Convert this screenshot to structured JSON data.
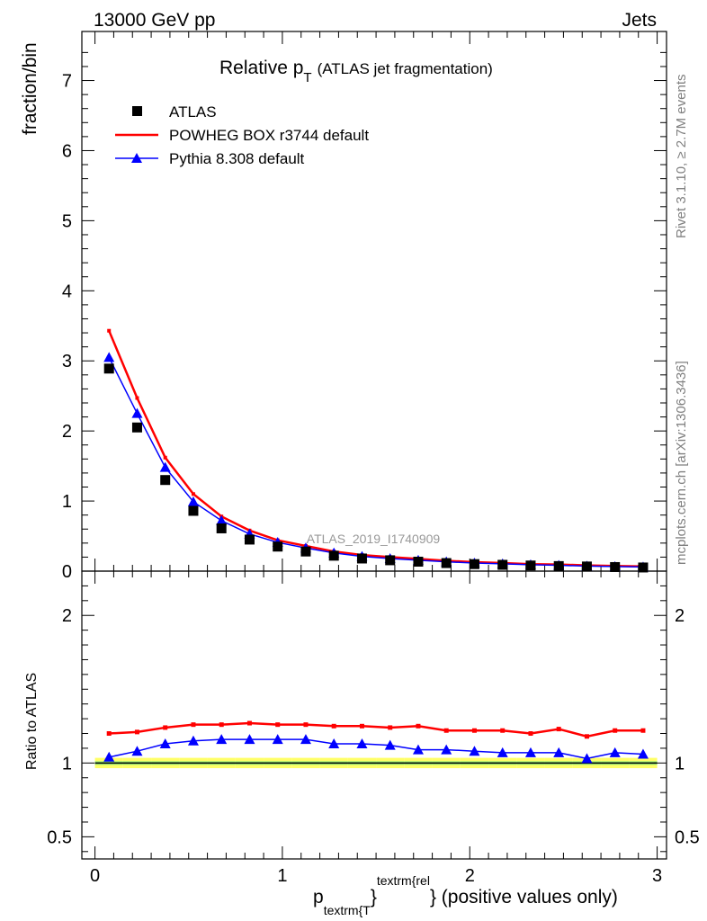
{
  "header": {
    "left": "13000 GeV pp",
    "right": "Jets"
  },
  "side_labels": {
    "rivet": "Rivet 3.1.10, ≥ 2.7M events",
    "mcplots": "mcplots.cern.ch [arXiv:1306.3436]"
  },
  "chart_data": [
    {
      "type": "scatter",
      "title": {
        "main": "Relative p",
        "sub": "T",
        "paren": "(ATLAS jet fragmentation)"
      },
      "watermark": "ATLAS_2019_I1740909",
      "xlabel": {
        "p": "p",
        "sub": "textrm{T",
        "brace": "}",
        "sup": "textrm{rel",
        "rest": "} (positive values only)"
      },
      "ylabel": "fraction/bin",
      "xlim": [
        -0.07,
        3.05
      ],
      "ylim": [
        0,
        7.7
      ],
      "x_ticks": [
        0,
        1,
        2,
        3
      ],
      "y_ticks": [
        0,
        1,
        2,
        3,
        4,
        5,
        6,
        7
      ],
      "x": [
        0.075,
        0.225,
        0.375,
        0.525,
        0.675,
        0.825,
        0.975,
        1.125,
        1.275,
        1.425,
        1.575,
        1.725,
        1.875,
        2.025,
        2.175,
        2.325,
        2.475,
        2.625,
        2.775,
        2.925
      ],
      "legend_position": "top-left",
      "series": [
        {
          "name": "ATLAS",
          "marker": "square",
          "color": "#000000",
          "values": [
            2.89,
            2.05,
            1.3,
            0.86,
            0.61,
            0.45,
            0.35,
            0.28,
            0.22,
            0.18,
            0.155,
            0.135,
            0.115,
            0.1,
            0.09,
            0.08,
            0.072,
            0.066,
            0.058,
            0.052
          ]
        },
        {
          "name": "POWHEG BOX r3744 default",
          "marker": "line",
          "color": "#ff0000",
          "values": [
            3.43,
            2.47,
            1.62,
            1.1,
            0.78,
            0.58,
            0.44,
            0.36,
            0.28,
            0.23,
            0.2,
            0.175,
            0.148,
            0.128,
            0.116,
            0.1,
            0.095,
            0.082,
            0.074,
            0.067
          ]
        },
        {
          "name": "Pythia 8.308 default",
          "marker": "triangle",
          "color": "#0000ff",
          "values": [
            3.05,
            2.25,
            1.48,
            0.99,
            0.72,
            0.53,
            0.41,
            0.33,
            0.26,
            0.21,
            0.18,
            0.155,
            0.133,
            0.115,
            0.104,
            0.091,
            0.083,
            0.072,
            0.066,
            0.059
          ]
        }
      ]
    },
    {
      "type": "scatter",
      "ylabel": "Ratio to ATLAS",
      "ylim": [
        0.35,
        2.3
      ],
      "y_ticks": [
        0.5,
        1,
        2
      ],
      "x_ticks": [
        0,
        1,
        2,
        3
      ],
      "x": [
        0.075,
        0.225,
        0.375,
        0.525,
        0.675,
        0.825,
        0.975,
        1.125,
        1.275,
        1.425,
        1.575,
        1.725,
        1.875,
        2.025,
        2.175,
        2.325,
        2.475,
        2.625,
        2.775,
        2.925
      ],
      "band": {
        "outer_color": "#ffff66",
        "inner_color": "#99ee77",
        "outer": [
          0.035,
          0.035,
          0.035,
          0.035,
          0.035,
          0.035,
          0.035,
          0.035,
          0.035,
          0.035,
          0.035,
          0.035,
          0.035,
          0.035,
          0.035,
          0.035,
          0.035,
          0.035,
          0.035,
          0.035
        ],
        "inner": [
          0.012,
          0.012,
          0.012,
          0.012,
          0.012,
          0.012,
          0.012,
          0.012,
          0.012,
          0.012,
          0.012,
          0.012,
          0.012,
          0.012,
          0.012,
          0.012,
          0.012,
          0.012,
          0.012,
          0.012
        ]
      },
      "series": [
        {
          "name": "POWHEG BOX r3744 default",
          "color": "#ff0000",
          "values": [
            1.2,
            1.21,
            1.24,
            1.26,
            1.26,
            1.27,
            1.26,
            1.26,
            1.25,
            1.25,
            1.24,
            1.25,
            1.22,
            1.22,
            1.22,
            1.2,
            1.23,
            1.18,
            1.22,
            1.22
          ]
        },
        {
          "name": "Pythia 8.308 default",
          "color": "#0000ff",
          "values": [
            1.04,
            1.08,
            1.13,
            1.15,
            1.16,
            1.16,
            1.16,
            1.16,
            1.13,
            1.13,
            1.12,
            1.09,
            1.09,
            1.08,
            1.07,
            1.07,
            1.07,
            1.03,
            1.07,
            1.06
          ]
        }
      ]
    }
  ]
}
